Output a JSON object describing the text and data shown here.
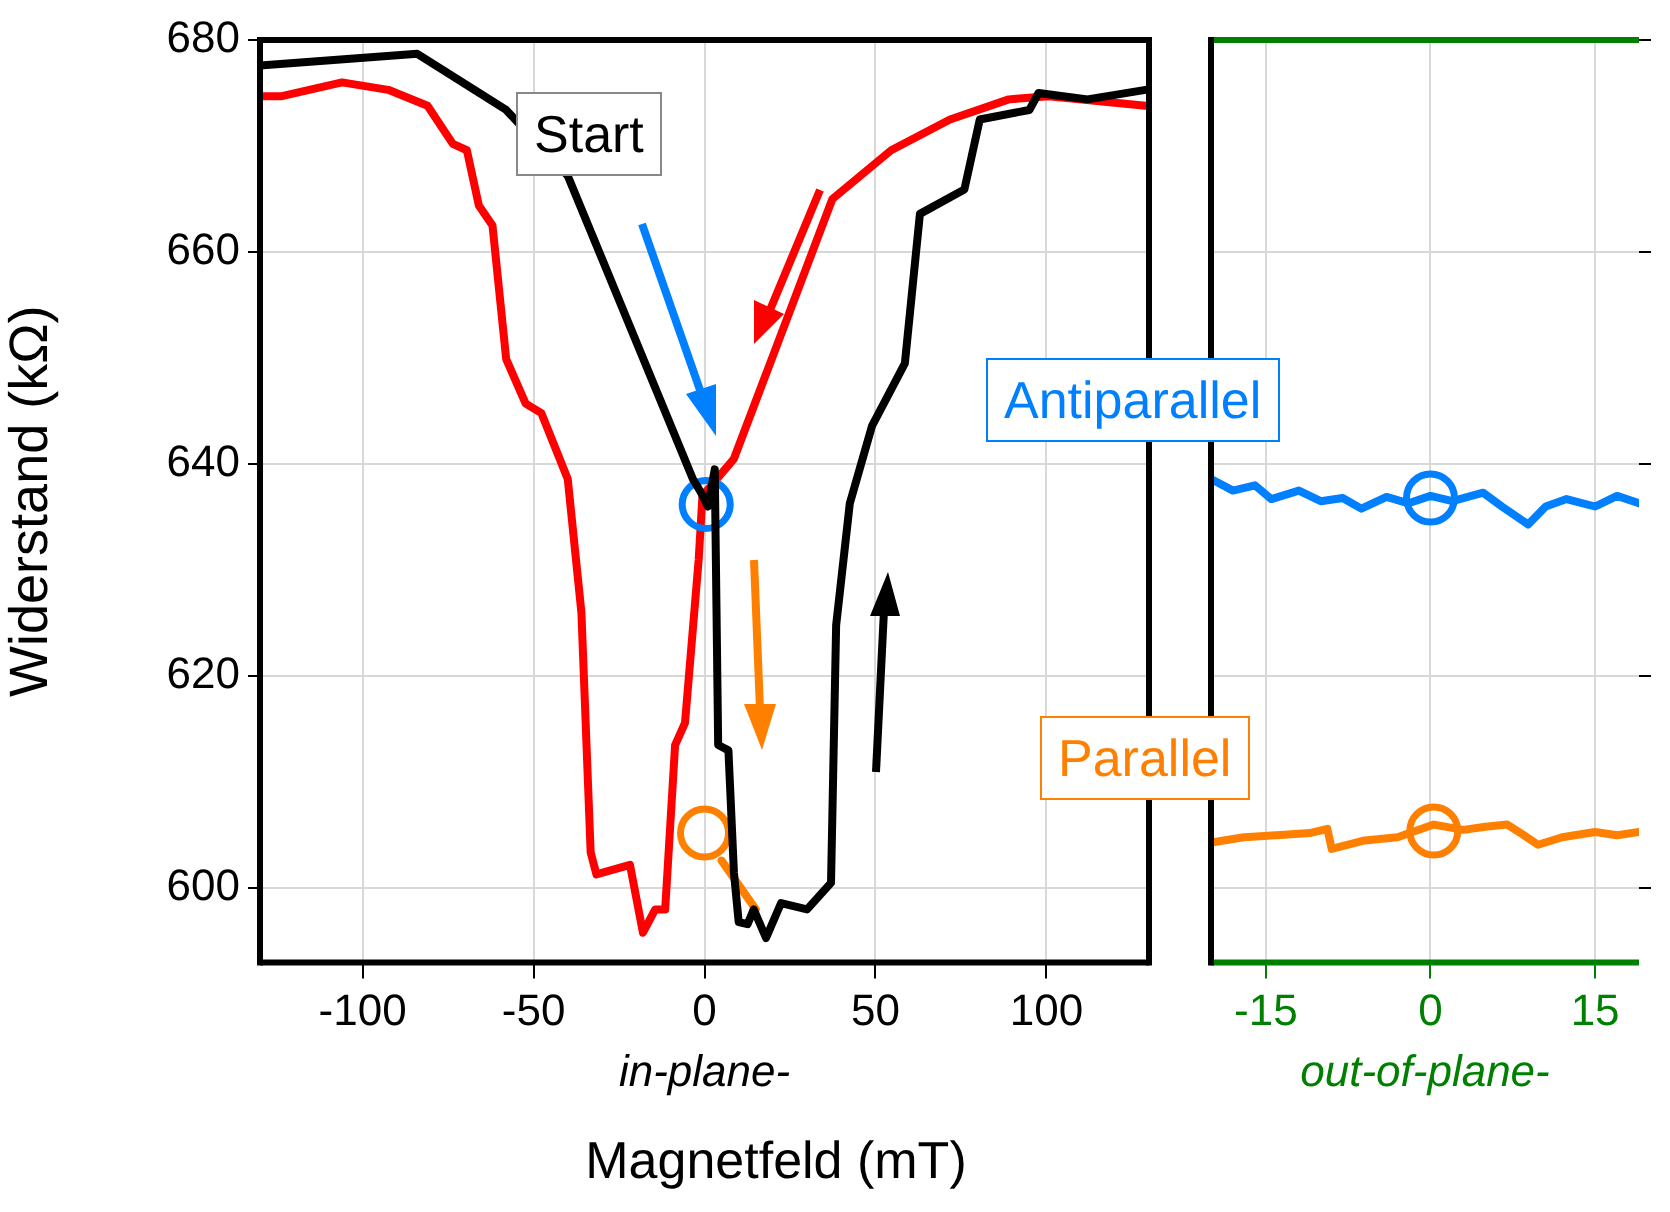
{
  "chart_data": [
    {
      "type": "line",
      "xlabel": "in-plane-",
      "ylabel": "Widerstand (kΩ)",
      "xlim": [
        -130,
        130
      ],
      "xticks": [
        -100,
        -50,
        0,
        50,
        100
      ],
      "ylim": [
        593,
        680
      ],
      "yticks": [
        600,
        620,
        640,
        660,
        680
      ],
      "grid": true,
      "legend": false,
      "marker": "none",
      "line_style": "solid",
      "annotations": [
        "Start",
        "Magnetfeld (mT)"
      ],
      "series": [
        {
          "color": "#000000",
          "x": [
            -130,
            -84,
            -58,
            -40,
            -3.4,
            -1,
            1,
            3,
            4,
            7,
            8.6,
            10,
            12.6,
            14.4,
            18,
            22.4,
            30,
            37,
            38.5,
            42.5,
            49,
            58.6,
            63,
            76,
            80.5,
            95,
            97.7,
            112,
            129
          ],
          "values": [
            677.6,
            678.7,
            673.4,
            667.2,
            638.6,
            637.3,
            636,
            639.5,
            613.5,
            613,
            601.5,
            596.8,
            596.6,
            598,
            595.3,
            598.6,
            598,
            600.5,
            624.8,
            636.3,
            643.6,
            649.5,
            663.6,
            665.9,
            672.5,
            673.4,
            675,
            674.4,
            675.3
          ]
        },
        {
          "type": "line",
          "color": "#ff8000",
          "x": [
            5,
            15
          ],
          "values": [
            602.6,
            598
          ]
        },
        {
          "type": "scatter",
          "marker": "circle",
          "color": "#0080ff",
          "x": [
            0.5
          ],
          "values": [
            636.2
          ]
        },
        {
          "type": "scatter",
          "marker": "circle",
          "color": "#ff8000",
          "x": [
            0
          ],
          "values": [
            605.2
          ]
        },
        {
          "color": "#ff0000",
          "x": [
            -129.3,
            -123.6,
            -106,
            -92.5,
            -81,
            -73.6,
            -69.5,
            -66,
            -62,
            -58,
            -52.3,
            -47.7,
            -40,
            -36,
            -33.3,
            -31.6,
            -21.8,
            -18,
            -14.4,
            -11.5,
            -8.6,
            -5.7,
            -1.7,
            -0.6,
            8.6,
            37.4,
            54.6,
            71.8,
            89,
            100.6,
            129
          ],
          "values": [
            674.7,
            674.7,
            676,
            675.3,
            673.8,
            670.2,
            669.6,
            664.4,
            662.5,
            649.9,
            645.7,
            644.8,
            638.6,
            626,
            603.4,
            601.3,
            602.2,
            595.8,
            598,
            598,
            613.5,
            615.6,
            631,
            637,
            640.5,
            665,
            669.6,
            672.5,
            674.4,
            674.7,
            673.8
          ]
        }
      ]
    },
    {
      "type": "line",
      "xlabel": "out-of-plane-",
      "xlim": [
        -20,
        19
      ],
      "xticks": [
        -15,
        0,
        15
      ],
      "ylim": [
        593,
        680
      ],
      "yticks": [
        600,
        620,
        640,
        660,
        680
      ],
      "tick_labels": "x",
      "grid": true,
      "legend": false,
      "marker": "none",
      "line_style": "solid",
      "annotations": [
        "Antiparallel",
        "Parallel"
      ],
      "series": [
        {
          "color": "#0080ff",
          "x": [
            -20,
            -18,
            -16,
            -14.5,
            -12,
            -10,
            -8,
            -6.3,
            -4,
            -2,
            0,
            2,
            4.8,
            6.5,
            8.9,
            10.5,
            12.4,
            15,
            17,
            19
          ],
          "values": [
            638.6,
            637.5,
            638,
            636.7,
            637.5,
            636.5,
            636.8,
            635.8,
            636.9,
            636.3,
            637,
            636.5,
            637.3,
            636,
            634.3,
            636,
            636.7,
            636,
            637,
            636.3
          ]
        },
        {
          "type": "scatter",
          "marker": "circle",
          "color": "#0080ff",
          "x": [
            0
          ],
          "values": [
            636.8
          ]
        },
        {
          "type": "scatter",
          "marker": "circle",
          "color": "#ff8000",
          "x": [
            0.3
          ],
          "values": [
            605.4
          ]
        },
        {
          "color": "#ff8000",
          "x": [
            -20,
            -17,
            -14,
            -11,
            -9.4,
            -9,
            -6,
            -3,
            0.3,
            3,
            5,
            7,
            8.5,
            9.8,
            12,
            15,
            17,
            19
          ],
          "values": [
            604.3,
            604.8,
            605,
            605.2,
            605.6,
            603.7,
            604.5,
            604.8,
            606,
            605.5,
            605.8,
            606,
            605,
            604.1,
            604.8,
            605.3,
            605,
            605.3
          ]
        }
      ]
    }
  ]
}
